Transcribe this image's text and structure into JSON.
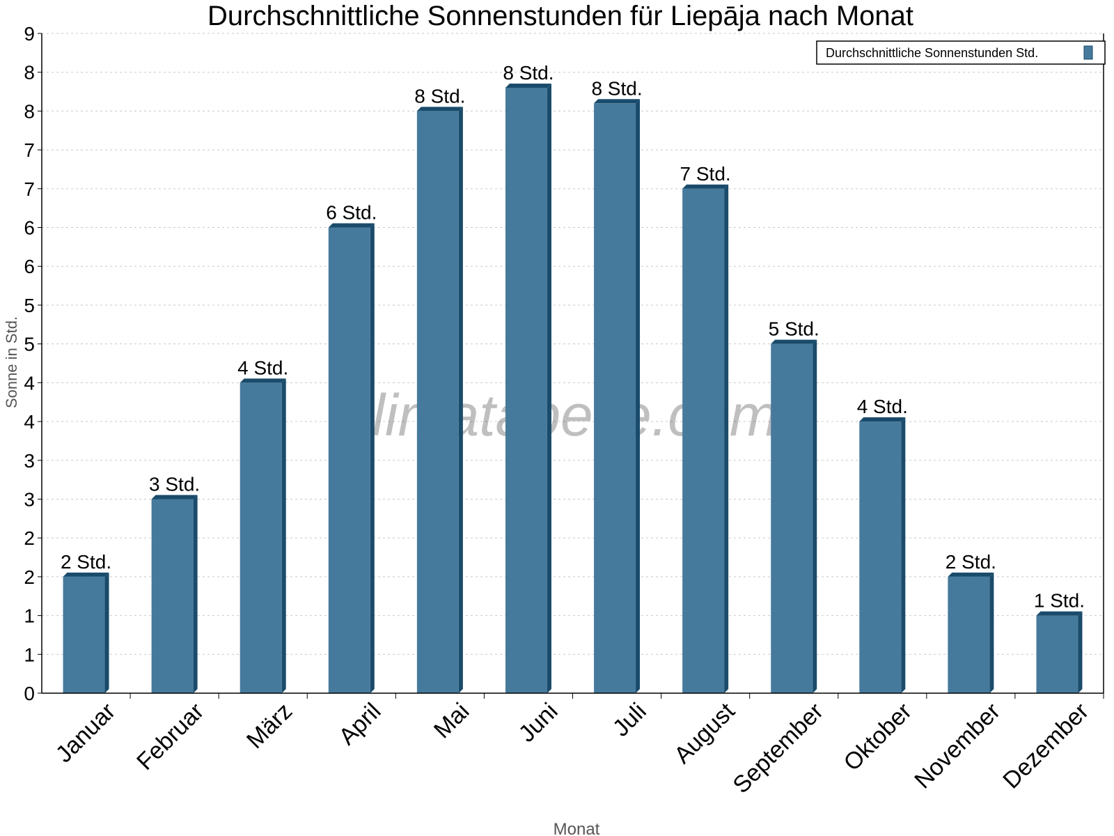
{
  "chart_data": {
    "type": "bar",
    "title": "Durchschnittliche Sonnenstunden für Liepāja nach Monat",
    "xlabel": "Monat",
    "ylabel": "Sonne in Std.",
    "categories": [
      "Januar",
      "Februar",
      "März",
      "April",
      "Mai",
      "Juni",
      "Juli",
      "August",
      "September",
      "Oktober",
      "November",
      "Dezember"
    ],
    "series": [
      {
        "name": "Durchschnittliche Sonnenstunden Std.",
        "values": [
          1.5,
          2.5,
          4.0,
          6.0,
          7.5,
          7.8,
          7.6,
          6.5,
          4.5,
          3.5,
          1.5,
          1.0
        ],
        "data_labels": [
          "2 Std.",
          "3 Std.",
          "4 Std.",
          "6 Std.",
          "8 Std.",
          "8 Std.",
          "8 Std.",
          "7 Std.",
          "5 Std.",
          "4 Std.",
          "2 Std.",
          "1 Std."
        ]
      }
    ],
    "ylim": [
      0,
      8.5
    ],
    "yticks": [
      0,
      0.5,
      1,
      1.5,
      2,
      2.5,
      3,
      3.5,
      4,
      4.5,
      5,
      5.5,
      6,
      6.5,
      7,
      7.5,
      8,
      8.5
    ],
    "ytick_labels": [
      "0",
      "1",
      "1",
      "2",
      "2",
      "3",
      "3",
      "4",
      "4",
      "5",
      "5",
      "6",
      "6",
      "7",
      "7",
      "8",
      "8",
      "9"
    ],
    "grid": true,
    "legend_position": "top-right",
    "colors": {
      "bar": "#467a9c",
      "bar_side": "#1a4b6b",
      "grid": "#c8c8c8"
    },
    "watermark": "klimatabelle.com"
  }
}
